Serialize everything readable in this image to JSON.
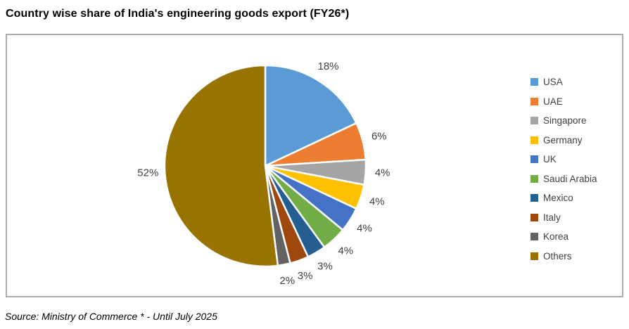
{
  "title": "Country wise share of India's engineering goods export (FY26*)",
  "source": "Source: Ministry of Commerce  * - Until July 2025",
  "chart_data": {
    "type": "pie",
    "title": "Country wise share of India's engineering goods export (FY26*)",
    "categories": [
      "USA",
      "UAE",
      "Singapore",
      "Germany",
      "UK",
      "Saudi Arabia",
      "Mexico",
      "Italy",
      "Korea",
      "Others"
    ],
    "values": [
      18,
      6,
      4,
      4,
      4,
      4,
      3,
      3,
      2,
      52
    ],
    "labels": [
      "18%",
      "6%",
      "4%",
      "4%",
      "4%",
      "4%",
      "3%",
      "3%",
      "2%",
      "52%"
    ],
    "colors": [
      "#5B9BD5",
      "#ED7D31",
      "#A5A5A5",
      "#FFC000",
      "#4472C4",
      "#70AD47",
      "#255E91",
      "#9E480E",
      "#636363",
      "#997300"
    ],
    "start_angle_deg": 0,
    "direction": "clockwise",
    "slice_border_color": "#FFFFFF",
    "label_color": "#404040",
    "legend_position": "right",
    "legend_entries": [
      "USA",
      "UAE",
      "Singapore",
      "Germany",
      "UK",
      "Saudi Arabia",
      "Mexico",
      "Italy",
      "Korea",
      "Others"
    ]
  }
}
